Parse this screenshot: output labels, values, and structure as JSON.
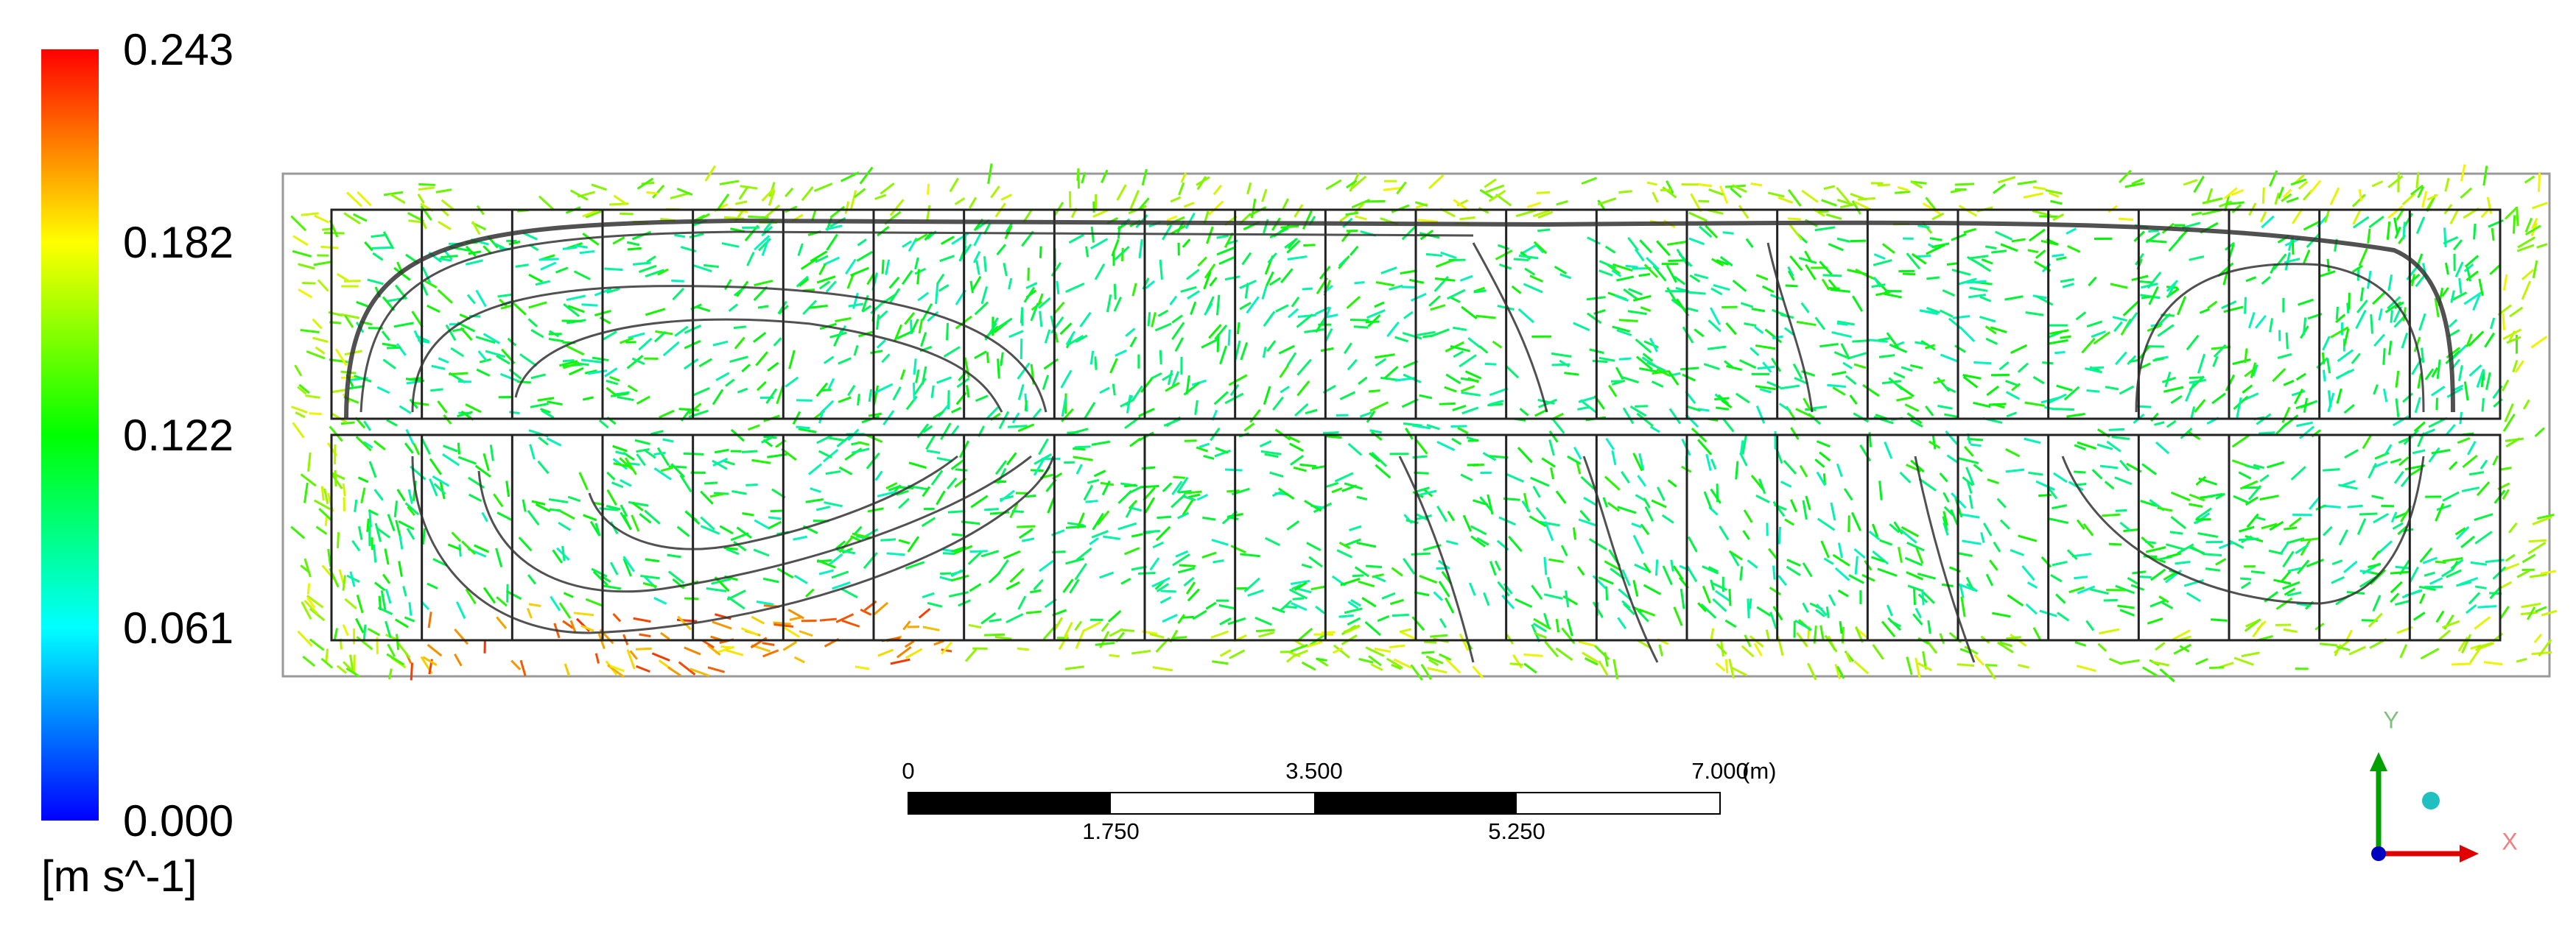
{
  "legend": {
    "ticks": [
      "0.243",
      "0.182",
      "0.122",
      "0.061",
      "0.000"
    ],
    "unit": "[m s^-1]"
  },
  "scale_bar": {
    "top_labels": [
      "0",
      "3.500",
      "7.000"
    ],
    "unit": "(m)",
    "bottom_labels": [
      "1.750",
      "5.250"
    ]
  },
  "axes": {
    "y": "Y",
    "x": "X"
  }
}
